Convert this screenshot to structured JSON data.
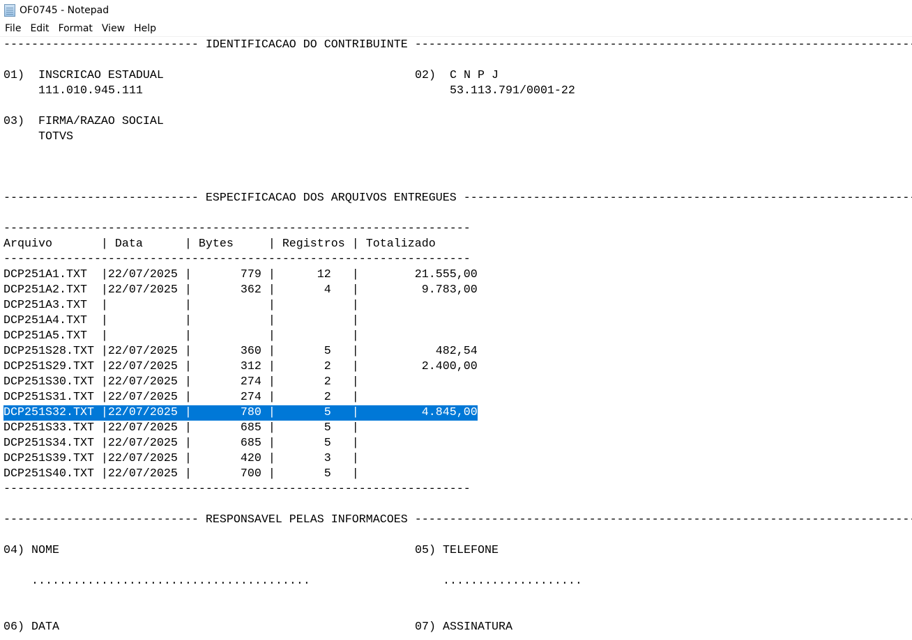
{
  "window": {
    "title": "OF0745 - Notepad",
    "icon": "notepad-icon"
  },
  "menu": [
    "File",
    "Edit",
    "Format",
    "View",
    "Help"
  ],
  "sections": {
    "identificacao": "IDENTIFICACAO DO CONTRIBUINTE",
    "especificacao": "ESPECIFICACAO DOS ARQUIVOS ENTREGUES",
    "responsavel": "RESPONSAVEL PELAS INFORMACOES"
  },
  "contribuinte": {
    "f01_label": "01)  INSCRICAO ESTADUAL",
    "f01_value": "111.010.945.111",
    "f02_label": "02)  C N P J",
    "f02_value": "53.113.791/0001-22",
    "f03_label": "03)  FIRMA/RAZAO SOCIAL",
    "f03_value": "TOTVS"
  },
  "table": {
    "headers": [
      "Arquivo",
      "Data",
      "Bytes",
      "Registros",
      "Totalizado"
    ],
    "rows": [
      {
        "arquivo": "DCP251A1.TXT",
        "data": "22/07/2025",
        "bytes": "779",
        "registros": "12",
        "totalizado": "21.555,00"
      },
      {
        "arquivo": "DCP251A2.TXT",
        "data": "22/07/2025",
        "bytes": "362",
        "registros": "4",
        "totalizado": "9.783,00"
      },
      {
        "arquivo": "DCP251A3.TXT",
        "data": "",
        "bytes": "",
        "registros": "",
        "totalizado": ""
      },
      {
        "arquivo": "DCP251A4.TXT",
        "data": "",
        "bytes": "",
        "registros": "",
        "totalizado": ""
      },
      {
        "arquivo": "DCP251A5.TXT",
        "data": "",
        "bytes": "",
        "registros": "",
        "totalizado": ""
      },
      {
        "arquivo": "DCP251S28.TXT",
        "data": "22/07/2025",
        "bytes": "360",
        "registros": "5",
        "totalizado": "482,54"
      },
      {
        "arquivo": "DCP251S29.TXT",
        "data": "22/07/2025",
        "bytes": "312",
        "registros": "2",
        "totalizado": "2.400,00"
      },
      {
        "arquivo": "DCP251S30.TXT",
        "data": "22/07/2025",
        "bytes": "274",
        "registros": "2",
        "totalizado": ""
      },
      {
        "arquivo": "DCP251S31.TXT",
        "data": "22/07/2025",
        "bytes": "274",
        "registros": "2",
        "totalizado": ""
      },
      {
        "arquivo": "DCP251S32.TXT",
        "data": "22/07/2025",
        "bytes": "780",
        "registros": "5",
        "totalizado": "4.845,00",
        "selected": true
      },
      {
        "arquivo": "DCP251S33.TXT",
        "data": "22/07/2025",
        "bytes": "685",
        "registros": "5",
        "totalizado": ""
      },
      {
        "arquivo": "DCP251S34.TXT",
        "data": "22/07/2025",
        "bytes": "685",
        "registros": "5",
        "totalizado": ""
      },
      {
        "arquivo": "DCP251S39.TXT",
        "data": "22/07/2025",
        "bytes": "420",
        "registros": "3",
        "totalizado": ""
      },
      {
        "arquivo": "DCP251S40.TXT",
        "data": "22/07/2025",
        "bytes": "700",
        "registros": "5",
        "totalizado": ""
      }
    ]
  },
  "responsavel": {
    "f04_label": "04) NOME",
    "f04_value": "........................................",
    "f05_label": "05) TELEFONE",
    "f05_value": "....................",
    "f06_label": "06) DATA",
    "f07_label": "07) ASSINATURA"
  },
  "colors": {
    "selection": "#0078d7"
  }
}
